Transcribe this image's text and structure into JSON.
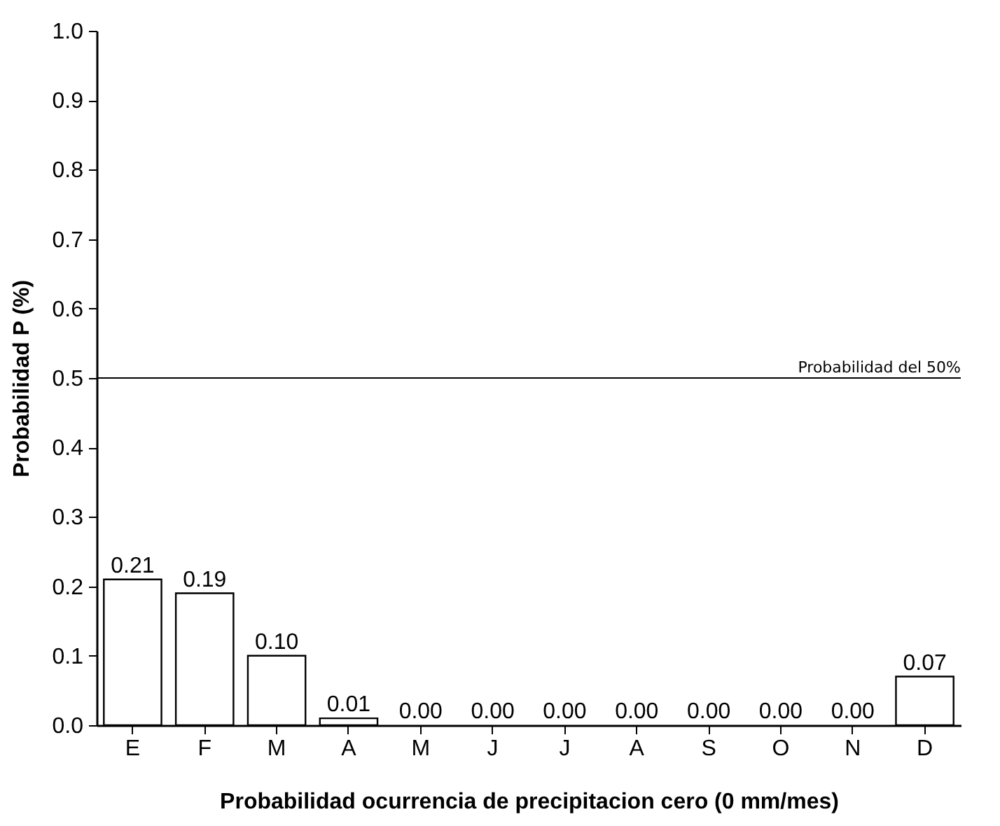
{
  "chart_data": {
    "type": "bar",
    "xlabel": "Probabilidad ocurrencia de precipitacion cero (0 mm/mes)",
    "ylabel": "Probabilidad P (%)",
    "categories": [
      "E",
      "F",
      "M",
      "A",
      "M",
      "J",
      "J",
      "A",
      "S",
      "O",
      "N",
      "D"
    ],
    "values": [
      0.21,
      0.19,
      0.1,
      0.01,
      0.0,
      0.0,
      0.0,
      0.0,
      0.0,
      0.0,
      0.0,
      0.07
    ],
    "value_labels": [
      "0.21",
      "0.19",
      "0.10",
      "0.01",
      "0.00",
      "0.00",
      "0.00",
      "0.00",
      "0.00",
      "0.00",
      "0.00",
      "0.07"
    ],
    "color": "#ffffff",
    "ylim": [
      0,
      1
    ],
    "yticks": [
      "0.0",
      "0.1",
      "0.2",
      "0.3",
      "0.4",
      "0.5",
      "0.6",
      "0.7",
      "0.8",
      "0.9",
      "1.0"
    ],
    "ref_lines": [
      {
        "axis": "y",
        "value": 0.5,
        "label": "Probabilidad del 50%",
        "color": "#000000"
      }
    ],
    "grid": false
  }
}
